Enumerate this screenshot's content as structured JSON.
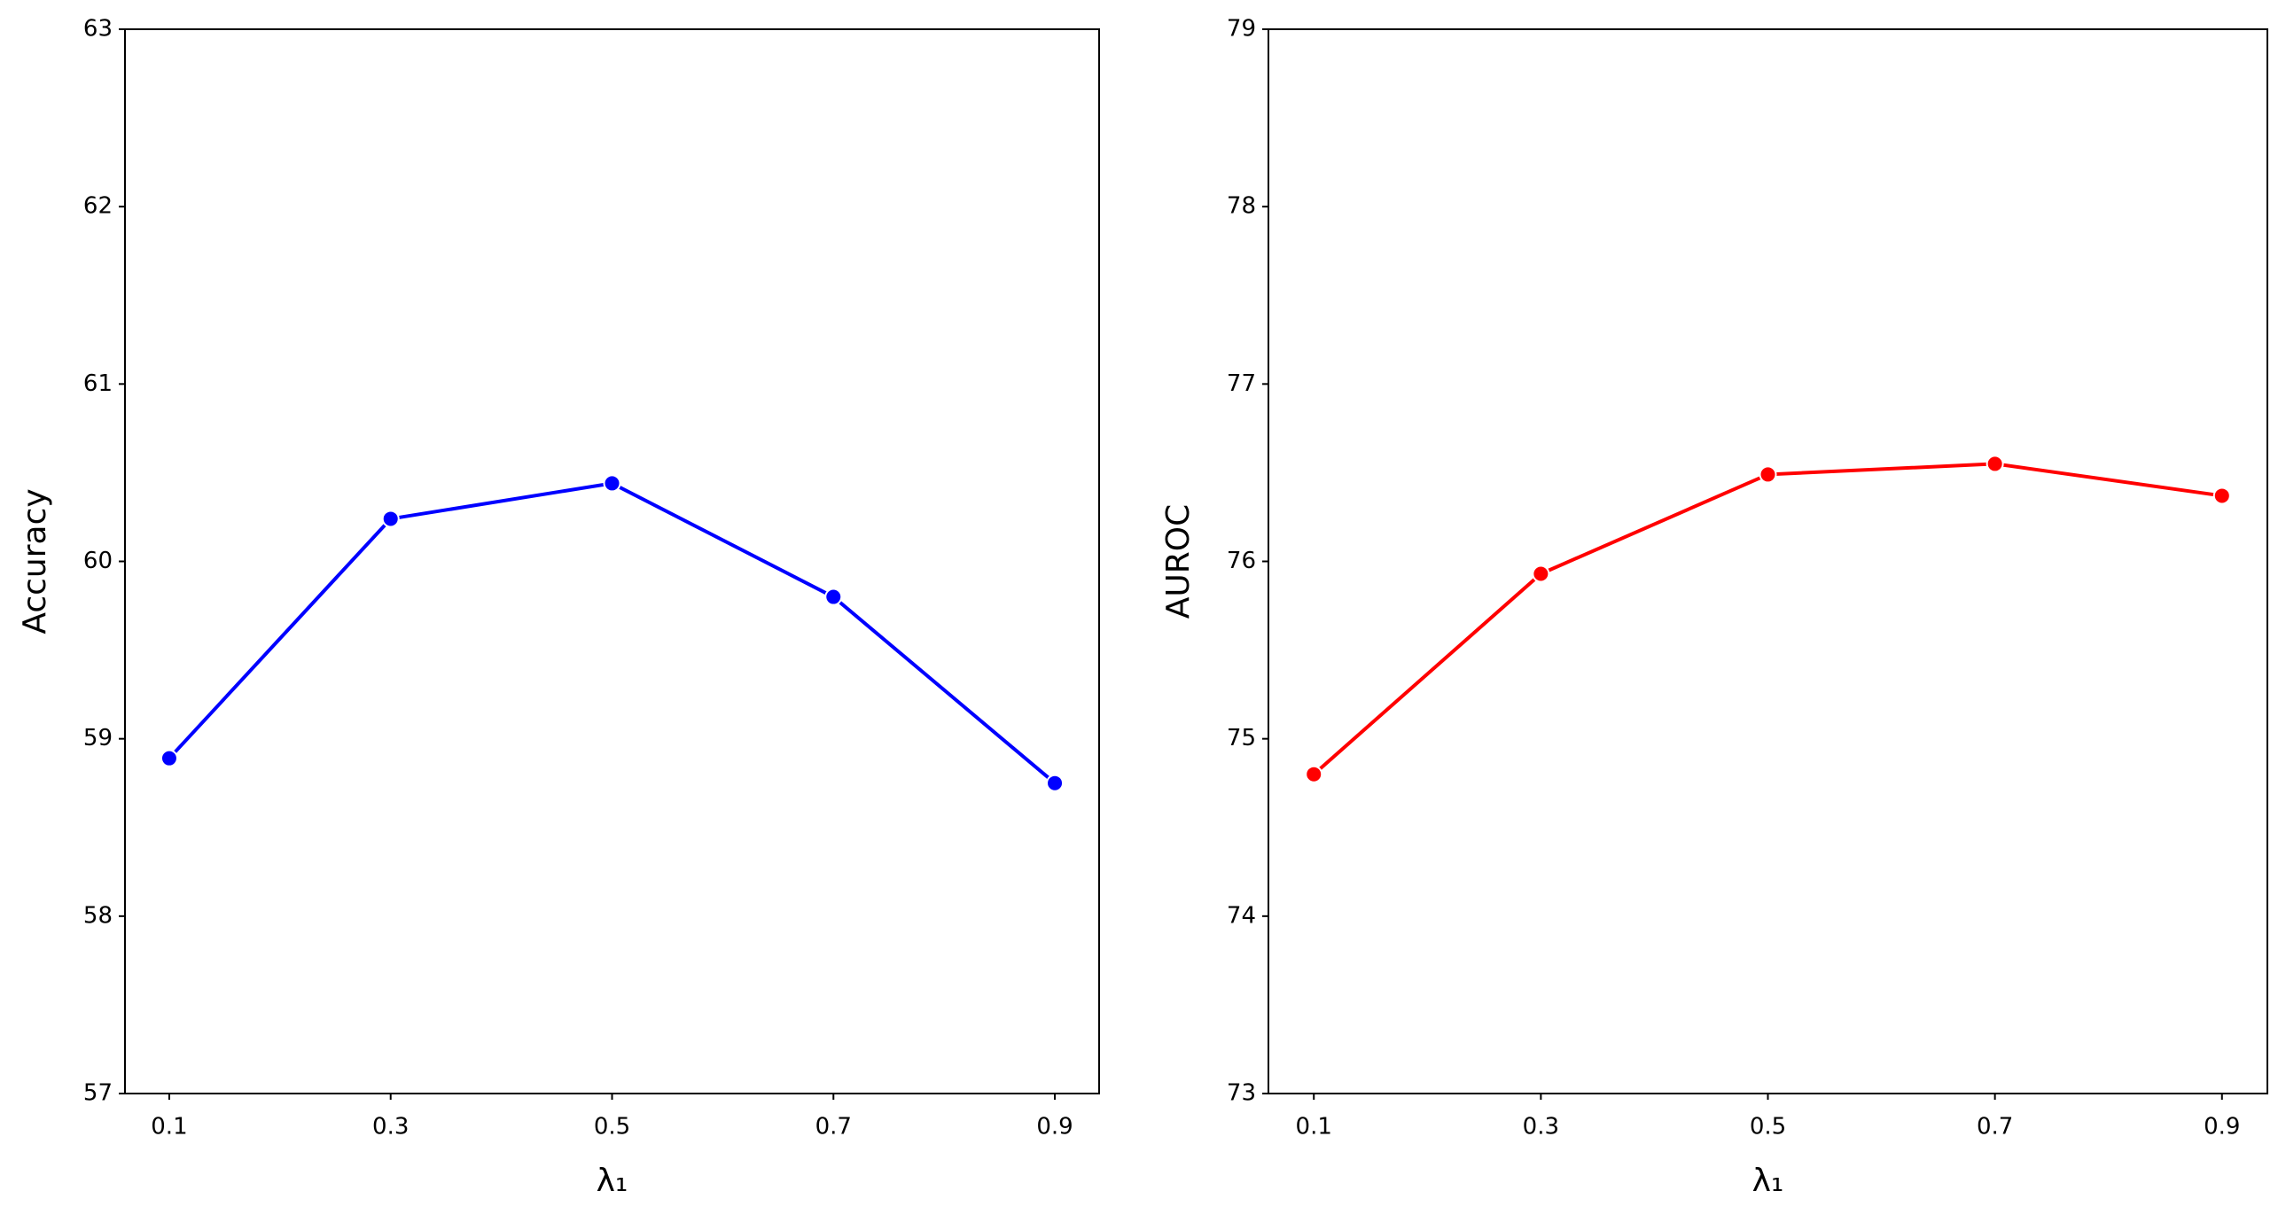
{
  "chart_data": [
    {
      "type": "line",
      "xlabel": "λ₁",
      "ylabel": "Accuracy",
      "x": [
        0.1,
        0.3,
        0.5,
        0.7,
        0.9
      ],
      "series": [
        {
          "color": "#0000ff",
          "values": [
            58.89,
            60.24,
            60.44,
            59.8,
            58.75
          ]
        }
      ],
      "xlim": [
        0.06,
        0.94
      ],
      "xticks": [
        0.1,
        0.3,
        0.5,
        0.7,
        0.9
      ],
      "ylim": [
        57,
        63
      ],
      "yticks": [
        57,
        58,
        59,
        60,
        61,
        62,
        63
      ],
      "grid": false
    },
    {
      "type": "line",
      "xlabel": "λ₁",
      "ylabel": "AUROC",
      "x": [
        0.1,
        0.3,
        0.5,
        0.7,
        0.9
      ],
      "series": [
        {
          "color": "#ff0000",
          "values": [
            74.8,
            75.93,
            76.49,
            76.55,
            76.37
          ]
        }
      ],
      "xlim": [
        0.06,
        0.94
      ],
      "xticks": [
        0.1,
        0.3,
        0.5,
        0.7,
        0.9
      ],
      "ylim": [
        73,
        79
      ],
      "yticks": [
        73,
        74,
        75,
        76,
        77,
        78,
        79
      ],
      "grid": false
    }
  ]
}
